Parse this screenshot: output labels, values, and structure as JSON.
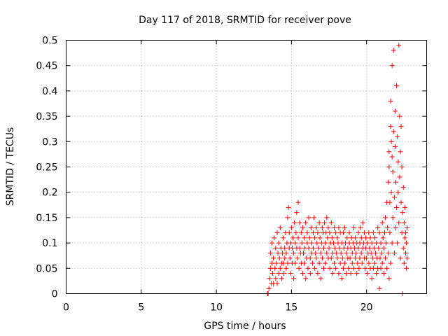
{
  "chart_data": {
    "type": "scatter",
    "title": "Day 117 of 2018, SRMTID for receiver pove",
    "xlabel": "GPS time / hours",
    "ylabel": "SRMTID / TECUs",
    "xlim": [
      0,
      24
    ],
    "ylim": [
      0,
      0.5
    ],
    "xticks": [
      0,
      5,
      10,
      15,
      20
    ],
    "xtick_labels": [
      "0",
      "5",
      "10",
      "15",
      "20"
    ],
    "yticks": [
      0,
      0.05,
      0.1,
      0.15,
      0.2,
      0.25,
      0.3,
      0.35,
      0.4,
      0.45,
      0.5
    ],
    "ytick_labels": [
      "0",
      "0.05",
      "0.1",
      "0.15",
      "0.2",
      "0.25",
      "0.3",
      "0.35",
      "0.4",
      "0.45",
      "0.5"
    ],
    "grid": true,
    "marker": "+",
    "marker_color": "#ff0000",
    "series": [
      {
        "name": "SRMTID",
        "points": [
          [
            13.4,
            0.0
          ],
          [
            13.45,
            0.0
          ],
          [
            13.5,
            0.01
          ],
          [
            13.55,
            0.03
          ],
          [
            13.6,
            0.05
          ],
          [
            13.6,
            0.08
          ],
          [
            13.65,
            0.02
          ],
          [
            13.7,
            0.06
          ],
          [
            13.7,
            0.1
          ],
          [
            13.75,
            0.04
          ],
          [
            13.8,
            0.02
          ],
          [
            13.8,
            0.07
          ],
          [
            13.85,
            0.11
          ],
          [
            13.9,
            0.05
          ],
          [
            13.95,
            0.09
          ],
          [
            13.95,
            0.03
          ],
          [
            14.0,
            0.06
          ],
          [
            14.05,
            0.12
          ],
          [
            14.05,
            0.02
          ],
          [
            14.1,
            0.08
          ],
          [
            14.15,
            0.04
          ],
          [
            14.15,
            0.1
          ],
          [
            14.2,
            0.07
          ],
          [
            14.25,
            0.13
          ],
          [
            14.25,
            0.05
          ],
          [
            14.3,
            0.09
          ],
          [
            14.35,
            0.06
          ],
          [
            14.35,
            0.03
          ],
          [
            14.4,
            0.08
          ],
          [
            14.45,
            0.11
          ],
          [
            14.45,
            0.06
          ],
          [
            14.5,
            0.04
          ],
          [
            14.55,
            0.09
          ],
          [
            14.55,
            0.07
          ],
          [
            14.6,
            0.12
          ],
          [
            14.65,
            0.05
          ],
          [
            14.65,
            0.08
          ],
          [
            14.7,
            0.1
          ],
          [
            14.75,
            0.15
          ],
          [
            14.75,
            0.06
          ],
          [
            14.8,
            0.17
          ],
          [
            14.85,
            0.09
          ],
          [
            14.85,
            0.12
          ],
          [
            14.9,
            0.07
          ],
          [
            14.95,
            0.04
          ],
          [
            14.95,
            0.1
          ],
          [
            15.0,
            0.13
          ],
          [
            15.05,
            0.06
          ],
          [
            15.05,
            0.09
          ],
          [
            15.1,
            0.11
          ],
          [
            15.15,
            0.03
          ],
          [
            15.15,
            0.08
          ],
          [
            15.2,
            0.14
          ],
          [
            15.25,
            0.1
          ],
          [
            15.25,
            0.06
          ],
          [
            15.3,
            0.12
          ],
          [
            15.35,
            0.16
          ],
          [
            15.35,
            0.09
          ],
          [
            15.4,
            0.07
          ],
          [
            15.45,
            0.18
          ],
          [
            15.45,
            0.11
          ],
          [
            15.5,
            0.05
          ],
          [
            15.55,
            0.09
          ],
          [
            15.55,
            0.14
          ],
          [
            15.6,
            0.08
          ],
          [
            15.65,
            0.12
          ],
          [
            15.65,
            0.06
          ],
          [
            15.7,
            0.1
          ],
          [
            15.75,
            0.04
          ],
          [
            15.75,
            0.13
          ],
          [
            15.8,
            0.08
          ],
          [
            15.85,
            0.11
          ],
          [
            15.85,
            0.06
          ],
          [
            15.9,
            0.09
          ],
          [
            15.95,
            0.14
          ],
          [
            15.95,
            0.03
          ],
          [
            16.0,
            0.07
          ],
          [
            16.05,
            0.12
          ],
          [
            16.05,
            0.1
          ],
          [
            16.1,
            0.05
          ],
          [
            16.15,
            0.09
          ],
          [
            16.15,
            0.15
          ],
          [
            16.2,
            0.11
          ],
          [
            16.25,
            0.07
          ],
          [
            16.25,
            0.04
          ],
          [
            16.3,
            0.13
          ],
          [
            16.35,
            0.08
          ],
          [
            16.35,
            0.1
          ],
          [
            16.4,
            0.06
          ],
          [
            16.45,
            0.12
          ],
          [
            16.45,
            0.09
          ],
          [
            16.5,
            0.15
          ],
          [
            16.55,
            0.05
          ],
          [
            16.55,
            0.11
          ],
          [
            16.6,
            0.08
          ],
          [
            16.65,
            0.13
          ],
          [
            16.65,
            0.07
          ],
          [
            16.7,
            0.1
          ],
          [
            16.75,
            0.04
          ],
          [
            16.75,
            0.12
          ],
          [
            16.8,
            0.09
          ],
          [
            16.85,
            0.14
          ],
          [
            16.85,
            0.06
          ],
          [
            16.9,
            0.11
          ],
          [
            16.95,
            0.08
          ],
          [
            16.95,
            0.03
          ],
          [
            17.0,
            0.1
          ],
          [
            17.05,
            0.13
          ],
          [
            17.05,
            0.07
          ],
          [
            17.1,
            0.12
          ],
          [
            17.15,
            0.05
          ],
          [
            17.15,
            0.09
          ],
          [
            17.2,
            0.14
          ],
          [
            17.25,
            0.1
          ],
          [
            17.25,
            0.06
          ],
          [
            17.3,
            0.12
          ],
          [
            17.35,
            0.08
          ],
          [
            17.35,
            0.15
          ],
          [
            17.4,
            0.11
          ],
          [
            17.45,
            0.07
          ],
          [
            17.45,
            0.13
          ],
          [
            17.5,
            0.09
          ],
          [
            17.55,
            0.05
          ],
          [
            17.55,
            0.12
          ],
          [
            17.6,
            0.1
          ],
          [
            17.65,
            0.14
          ],
          [
            17.65,
            0.07
          ],
          [
            17.7,
            0.11
          ],
          [
            17.75,
            0.08
          ],
          [
            17.75,
            0.04
          ],
          [
            17.8,
            0.1
          ],
          [
            17.85,
            0.13
          ],
          [
            17.85,
            0.06
          ],
          [
            17.9,
            0.09
          ],
          [
            17.95,
            0.12
          ],
          [
            17.95,
            0.05
          ],
          [
            18.0,
            0.08
          ],
          [
            18.05,
            0.11
          ],
          [
            18.05,
            0.07
          ],
          [
            18.1,
            0.1
          ],
          [
            18.15,
            0.04
          ],
          [
            18.15,
            0.13
          ],
          [
            18.2,
            0.09
          ],
          [
            18.25,
            0.06
          ],
          [
            18.25,
            0.12
          ],
          [
            18.3,
            0.08
          ],
          [
            18.35,
            0.03
          ],
          [
            18.35,
            0.1
          ],
          [
            18.4,
            0.07
          ],
          [
            18.45,
            0.12
          ],
          [
            18.45,
            0.05
          ],
          [
            18.5,
            0.09
          ],
          [
            18.55,
            0.13
          ],
          [
            18.55,
            0.06
          ],
          [
            18.6,
            0.1
          ],
          [
            18.65,
            0.04
          ],
          [
            18.65,
            0.08
          ],
          [
            18.7,
            0.11
          ],
          [
            18.75,
            0.07
          ],
          [
            18.75,
            0.09
          ],
          [
            18.8,
            0.05
          ],
          [
            18.85,
            0.1
          ],
          [
            18.85,
            0.12
          ],
          [
            18.9,
            0.07
          ],
          [
            18.95,
            0.04
          ],
          [
            18.95,
            0.09
          ],
          [
            19.0,
            0.11
          ],
          [
            19.05,
            0.06
          ],
          [
            19.05,
            0.08
          ],
          [
            19.1,
            0.1
          ],
          [
            19.15,
            0.05
          ],
          [
            19.15,
            0.13
          ],
          [
            19.2,
            0.09
          ],
          [
            19.25,
            0.07
          ],
          [
            19.25,
            0.11
          ],
          [
            19.3,
            0.08
          ],
          [
            19.35,
            0.04
          ],
          [
            19.35,
            0.1
          ],
          [
            19.4,
            0.06
          ],
          [
            19.45,
            0.12
          ],
          [
            19.45,
            0.09
          ],
          [
            19.5,
            0.05
          ],
          [
            19.55,
            0.1
          ],
          [
            19.55,
            0.07
          ],
          [
            19.6,
            0.13
          ],
          [
            19.65,
            0.08
          ],
          [
            19.65,
            0.11
          ],
          [
            19.7,
            0.06
          ],
          [
            19.75,
            0.09
          ],
          [
            19.75,
            0.14
          ],
          [
            19.8,
            0.1
          ],
          [
            19.85,
            0.07
          ],
          [
            19.85,
            0.12
          ],
          [
            19.9,
            0.05
          ],
          [
            19.95,
            0.09
          ],
          [
            19.95,
            0.11
          ],
          [
            20.0,
            0.07
          ],
          [
            20.05,
            0.04
          ],
          [
            20.05,
            0.1
          ],
          [
            20.1,
            0.08
          ],
          [
            20.15,
            0.12
          ],
          [
            20.15,
            0.06
          ],
          [
            20.2,
            0.09
          ],
          [
            20.25,
            0.05
          ],
          [
            20.25,
            0.11
          ],
          [
            20.3,
            0.08
          ],
          [
            20.35,
            0.03
          ],
          [
            20.35,
            0.1
          ],
          [
            20.4,
            0.07
          ],
          [
            20.45,
            0.12
          ],
          [
            20.45,
            0.05
          ],
          [
            20.5,
            0.09
          ],
          [
            20.55,
            0.06
          ],
          [
            20.55,
            0.11
          ],
          [
            20.6,
            0.08
          ],
          [
            20.65,
            0.04
          ],
          [
            20.65,
            0.1
          ],
          [
            20.7,
            0.07
          ],
          [
            20.75,
            0.13
          ],
          [
            20.75,
            0.05
          ],
          [
            20.8,
            0.09
          ],
          [
            20.85,
            0.01
          ],
          [
            20.85,
            0.12
          ],
          [
            20.9,
            0.07
          ],
          [
            20.95,
            0.1
          ],
          [
            20.95,
            0.05
          ],
          [
            21.0,
            0.08
          ],
          [
            21.05,
            0.14
          ],
          [
            21.05,
            0.06
          ],
          [
            21.1,
            0.11
          ],
          [
            21.15,
            0.09
          ],
          [
            21.15,
            0.04
          ],
          [
            21.2,
            0.12
          ],
          [
            21.25,
            0.07
          ],
          [
            21.25,
            0.15
          ],
          [
            21.3,
            0.1
          ],
          [
            21.35,
            0.05
          ],
          [
            21.35,
            0.18
          ],
          [
            21.4,
            0.13
          ],
          [
            21.45,
            0.08
          ],
          [
            21.45,
            0.22
          ],
          [
            21.5,
            0.03
          ],
          [
            21.5,
            0.25
          ],
          [
            21.5,
            0.28
          ],
          [
            21.55,
            0.12
          ],
          [
            21.55,
            0.18
          ],
          [
            21.6,
            0.33
          ],
          [
            21.6,
            0.38
          ],
          [
            21.6,
            0.06
          ],
          [
            21.65,
            0.3
          ],
          [
            21.65,
            0.2
          ],
          [
            21.7,
            0.1
          ],
          [
            21.7,
            0.27
          ],
          [
            21.7,
            0.45
          ],
          [
            21.75,
            0.15
          ],
          [
            21.75,
            0.24
          ],
          [
            21.8,
            0.32
          ],
          [
            21.8,
            0.48
          ],
          [
            21.85,
            0.19
          ],
          [
            21.85,
            0.08
          ],
          [
            21.9,
            0.29
          ],
          [
            21.9,
            0.36
          ],
          [
            21.95,
            0.13
          ],
          [
            21.95,
            0.22
          ],
          [
            22.0,
            0.41
          ],
          [
            22.0,
            0.17
          ],
          [
            22.05,
            0.31
          ],
          [
            22.05,
            0.1
          ],
          [
            22.1,
            0.26
          ],
          [
            22.1,
            0.2
          ],
          [
            22.15,
            0.49
          ],
          [
            22.15,
            0.14
          ],
          [
            22.2,
            0.35
          ],
          [
            22.2,
            0.23
          ],
          [
            22.25,
            0.28
          ],
          [
            22.25,
            0.07
          ],
          [
            22.3,
            0.18
          ],
          [
            22.3,
            0.33
          ],
          [
            22.35,
            0.12
          ],
          [
            22.35,
            0.25
          ],
          [
            22.4,
            0.0
          ],
          [
            22.4,
            0.16
          ],
          [
            22.45,
            0.21
          ],
          [
            22.45,
            0.09
          ],
          [
            22.5,
            0.14
          ],
          [
            22.5,
            0.06
          ],
          [
            22.55,
            0.11
          ],
          [
            22.55,
            0.17
          ],
          [
            22.6,
            0.08
          ],
          [
            22.6,
            0.12
          ],
          [
            22.65,
            0.1
          ],
          [
            22.65,
            0.05
          ],
          [
            22.7,
            0.13
          ],
          [
            22.7,
            0.07
          ]
        ]
      }
    ]
  }
}
